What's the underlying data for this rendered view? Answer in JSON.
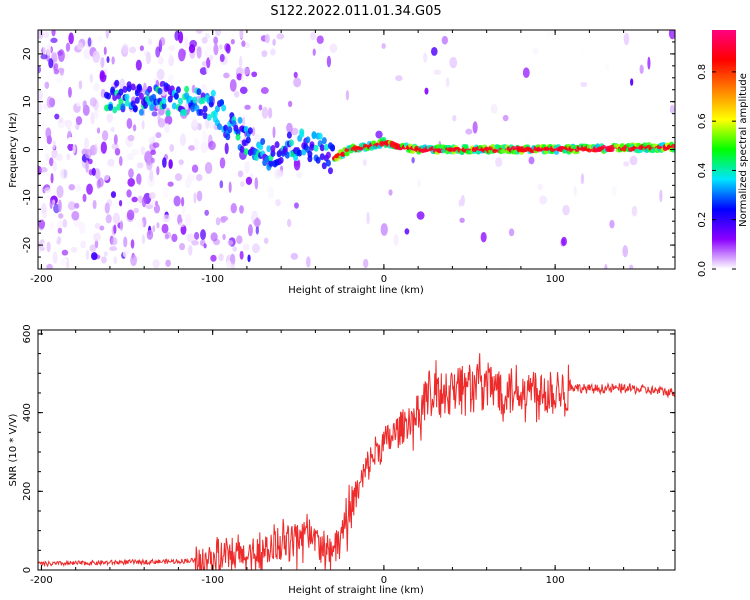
{
  "title": "S122.2022.011.01.34.G05",
  "chart_data": [
    {
      "type": "heatmap",
      "xlabel": "Height of straight line (km)",
      "ylabel": "Frequency (Hz)",
      "xlim": [
        -202,
        170
      ],
      "ylim": [
        -25,
        25
      ],
      "xticks": [
        -200,
        -100,
        0,
        100
      ],
      "yticks": [
        -20,
        -10,
        0,
        10,
        20
      ],
      "colorbar": {
        "label": "Normalized spectral amplitude",
        "ticks": [
          0.0,
          0.2,
          0.4,
          0.6,
          0.8
        ],
        "range": [
          0,
          0.97
        ],
        "colormap": [
          "#ffffff",
          "#8a00ff",
          "#0000ff",
          "#00e5ff",
          "#00ff00",
          "#ffff00",
          "#ff8000",
          "#ff0000",
          "#ff0080"
        ]
      },
      "ridge": {
        "x": [
          -160,
          -130,
          -110,
          -100,
          -90,
          -80,
          -70,
          -60,
          -50,
          -40,
          -30,
          -20,
          -10,
          0,
          10,
          20,
          50,
          100,
          170
        ],
        "y": [
          11,
          10.5,
          10,
          9,
          5,
          2,
          -1,
          0,
          1,
          1,
          -2,
          0,
          0.5,
          1.5,
          0.5,
          0,
          0,
          0,
          0.5
        ]
      }
    },
    {
      "type": "line",
      "xlabel": "Height of straight line (km)",
      "ylabel": "SNR (10 * V/V)",
      "xlim": [
        -202,
        170
      ],
      "ylim": [
        0,
        610
      ],
      "xticks": [
        -200,
        -100,
        0,
        100
      ],
      "yticks": [
        0,
        200,
        400,
        600
      ],
      "color": "#ee2a2a",
      "envelope": {
        "x": [
          -202,
          -150,
          -120,
          -100,
          -80,
          -70,
          -60,
          -50,
          -45,
          -40,
          -35,
          -30,
          -25,
          -20,
          -15,
          -10,
          -5,
          0,
          10,
          20,
          30,
          40,
          50,
          60,
          70,
          80,
          90,
          100,
          110,
          120,
          140,
          160,
          170
        ],
        "y": [
          15,
          20,
          22,
          28,
          35,
          50,
          65,
          90,
          100,
          80,
          50,
          45,
          90,
          160,
          200,
          260,
          300,
          320,
          360,
          410,
          450,
          465,
          470,
          470,
          460,
          460,
          455,
          460,
          465,
          460,
          462,
          455,
          450
        ]
      }
    }
  ]
}
